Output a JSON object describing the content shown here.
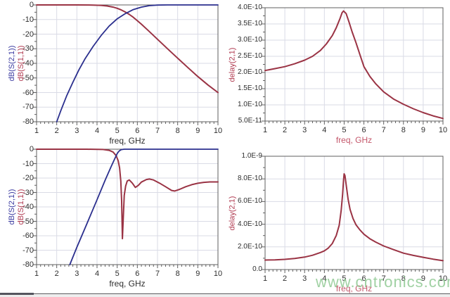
{
  "watermark": {
    "text": "www.cntronics.com",
    "color": "rgba(143,201,147,0.85)"
  },
  "colors": {
    "blue": "#2b2f8e",
    "red": "#9a3344",
    "grid": "#dadbe6",
    "frame": "#5f5f5f",
    "tick": "#5f5f5f",
    "tick_text": "#2e2e2e",
    "blue_label": "#3a3aa0",
    "red_label": "#b03a50",
    "red_axis_title": "#c4576b",
    "dark_axis_title": "#2e2e2e"
  },
  "chart_data": [
    {
      "id": "tl",
      "type": "line",
      "title": "",
      "xlabel": "freq, GHz",
      "xlabel_style": "dark",
      "ylabel_lines": [
        {
          "text": "dB(S(2,1))",
          "color_key": "blue_label"
        },
        {
          "text": "dB(S(1,1))",
          "color_key": "red_label"
        }
      ],
      "x": {
        "min": 1,
        "max": 10,
        "ticks": [
          1,
          2,
          3,
          4,
          5,
          6,
          7,
          8,
          9,
          10
        ],
        "minor_step": 0.2
      },
      "y": {
        "min": -80,
        "max": 0,
        "ticks": [
          {
            "label": "0",
            "value": 0
          },
          {
            "label": "-10",
            "value": -10
          },
          {
            "label": "-20",
            "value": -20
          },
          {
            "label": "-30",
            "value": -30
          },
          {
            "label": "-40",
            "value": -40
          },
          {
            "label": "-50",
            "value": -50
          },
          {
            "label": "-60",
            "value": -60
          },
          {
            "label": "-70",
            "value": -70
          },
          {
            "label": "-80",
            "value": -80
          }
        ],
        "sci": false
      },
      "series": [
        {
          "name": "dB(S(1,1))",
          "color_key": "red",
          "width": 2,
          "points": [
            [
              1,
              0
            ],
            [
              2,
              0
            ],
            [
              3,
              0
            ],
            [
              3.8,
              -0.1
            ],
            [
              4.2,
              -0.3
            ],
            [
              4.5,
              -0.7
            ],
            [
              4.8,
              -1.5
            ],
            [
              5.0,
              -2.3
            ],
            [
              5.2,
              -3.4
            ],
            [
              5.4,
              -4.8
            ],
            [
              5.6,
              -6.5
            ],
            [
              5.8,
              -8.5
            ],
            [
              6.0,
              -10.8
            ],
            [
              6.2,
              -13.2
            ],
            [
              6.5,
              -17
            ],
            [
              7.0,
              -23.5
            ],
            [
              7.5,
              -30
            ],
            [
              8.0,
              -36.5
            ],
            [
              8.5,
              -42.8
            ],
            [
              9.0,
              -49
            ],
            [
              9.5,
              -54.8
            ],
            [
              10,
              -60
            ]
          ]
        },
        {
          "name": "dB(S(2,1))",
          "color_key": "blue",
          "width": 1.8,
          "points": [
            [
              2,
              -80
            ],
            [
              2.2,
              -72.5
            ],
            [
              2.5,
              -62
            ],
            [
              2.8,
              -53
            ],
            [
              3.1,
              -44.5
            ],
            [
              3.4,
              -37
            ],
            [
              3.8,
              -28.5
            ],
            [
              4.2,
              -21
            ],
            [
              4.6,
              -14.5
            ],
            [
              5.0,
              -9.5
            ],
            [
              5.4,
              -6
            ],
            [
              5.8,
              -3.2
            ],
            [
              6.2,
              -1.5
            ],
            [
              6.6,
              -0.5
            ],
            [
              7.0,
              -0.1
            ],
            [
              7.5,
              0
            ],
            [
              10,
              0
            ]
          ]
        }
      ]
    },
    {
      "id": "tr",
      "type": "line",
      "title": "",
      "xlabel": "freq, GHz",
      "xlabel_style": "red",
      "ylabel_lines": [
        {
          "text": "delay(2,1)",
          "color_key": "red_label"
        }
      ],
      "x": {
        "min": 1,
        "max": 10,
        "ticks": [
          1,
          2,
          3,
          4,
          5,
          6,
          7,
          8,
          9,
          10
        ],
        "minor_step": 0.2
      },
      "y": {
        "min": 5e-11,
        "max": 4e-10,
        "ticks": [
          {
            "label": "4.0E-10",
            "value": 4e-10
          },
          {
            "label": "3.5E-10",
            "value": 3.5e-10
          },
          {
            "label": "3.0E-10",
            "value": 3e-10
          },
          {
            "label": "2.5E-10",
            "value": 2.5e-10
          },
          {
            "label": "2.0E-10",
            "value": 2e-10
          },
          {
            "label": "1.5E-10",
            "value": 1.5e-10
          },
          {
            "label": "1.0E-10",
            "value": 1e-10
          },
          {
            "label": "5.0E-11",
            "value": 5e-11
          }
        ],
        "sci": true
      },
      "series": [
        {
          "name": "delay(2,1)",
          "color_key": "red",
          "width": 2,
          "points": [
            [
              1,
              2.06e-10
            ],
            [
              1.5,
              2.12e-10
            ],
            [
              2,
              2.18e-10
            ],
            [
              2.5,
              2.27e-10
            ],
            [
              3,
              2.38e-10
            ],
            [
              3.4,
              2.5e-10
            ],
            [
              3.8,
              2.68e-10
            ],
            [
              4.1,
              2.88e-10
            ],
            [
              4.4,
              3.14e-10
            ],
            [
              4.6,
              3.38e-10
            ],
            [
              4.8,
              3.68e-10
            ],
            [
              4.9,
              3.85e-10
            ],
            [
              4.97,
              3.9e-10
            ],
            [
              5.1,
              3.82e-10
            ],
            [
              5.25,
              3.55e-10
            ],
            [
              5.4,
              3.26e-10
            ],
            [
              5.6,
              2.92e-10
            ],
            [
              5.8,
              2.55e-10
            ],
            [
              6.0,
              2.18e-10
            ],
            [
              6.3,
              1.88e-10
            ],
            [
              6.6,
              1.65e-10
            ],
            [
              7.0,
              1.4e-10
            ],
            [
              7.5,
              1.18e-10
            ],
            [
              8.0,
              1.02e-10
            ],
            [
              8.5,
              8.8e-11
            ],
            [
              9.0,
              7.6e-11
            ],
            [
              9.5,
              6.6e-11
            ],
            [
              10,
              5.8e-11
            ]
          ]
        }
      ]
    },
    {
      "id": "bl",
      "type": "line",
      "title": "",
      "xlabel": "freq, GHz",
      "xlabel_style": "dark",
      "ylabel_lines": [
        {
          "text": "dB(S(2,1))",
          "color_key": "blue_label"
        },
        {
          "text": "dB(S(1,1))",
          "color_key": "red_label"
        }
      ],
      "x": {
        "min": 1,
        "max": 10,
        "ticks": [
          1,
          2,
          3,
          4,
          5,
          6,
          7,
          8,
          9,
          10
        ],
        "minor_step": 0.2
      },
      "y": {
        "min": -80,
        "max": 0,
        "ticks": [
          {
            "label": "0",
            "value": 0
          },
          {
            "label": "-10",
            "value": -10
          },
          {
            "label": "-20",
            "value": -20
          },
          {
            "label": "-30",
            "value": -30
          },
          {
            "label": "-40",
            "value": -40
          },
          {
            "label": "-50",
            "value": -50
          },
          {
            "label": "-60",
            "value": -60
          },
          {
            "label": "-70",
            "value": -70
          },
          {
            "label": "-80",
            "value": -80
          }
        ],
        "sci": false
      },
      "series": [
        {
          "name": "dB(S(1,1))",
          "color_key": "red",
          "width": 2,
          "points": [
            [
              1,
              0
            ],
            [
              3.5,
              0
            ],
            [
              4.3,
              -0.2
            ],
            [
              4.6,
              -0.8
            ],
            [
              4.8,
              -2
            ],
            [
              4.95,
              -4.5
            ],
            [
              5.05,
              -8
            ],
            [
              5.12,
              -13
            ],
            [
              5.18,
              -22
            ],
            [
              5.22,
              -36
            ],
            [
              5.26,
              -62
            ],
            [
              5.3,
              -48
            ],
            [
              5.35,
              -32
            ],
            [
              5.42,
              -25.5
            ],
            [
              5.5,
              -22
            ],
            [
              5.6,
              -21.3
            ],
            [
              5.75,
              -23.5
            ],
            [
              5.9,
              -26.5
            ],
            [
              6.05,
              -25
            ],
            [
              6.2,
              -22.8
            ],
            [
              6.45,
              -21
            ],
            [
              6.6,
              -20.7
            ],
            [
              6.8,
              -21.3
            ],
            [
              7.1,
              -23.5
            ],
            [
              7.4,
              -26
            ],
            [
              7.7,
              -28.6
            ],
            [
              7.85,
              -29
            ],
            [
              8.1,
              -27.8
            ],
            [
              8.4,
              -26
            ],
            [
              8.7,
              -24.6
            ],
            [
              9.0,
              -23.6
            ],
            [
              9.3,
              -23
            ],
            [
              9.6,
              -22.7
            ],
            [
              10,
              -22.7
            ]
          ]
        },
        {
          "name": "dB(S(2,1))",
          "color_key": "blue",
          "width": 1.8,
          "points": [
            [
              2.65,
              -80
            ],
            [
              3.0,
              -68
            ],
            [
              3.5,
              -51.5
            ],
            [
              4.0,
              -35
            ],
            [
              4.4,
              -21.5
            ],
            [
              4.7,
              -12
            ],
            [
              4.9,
              -6
            ],
            [
              5.0,
              -3
            ],
            [
              5.1,
              -1.2
            ],
            [
              5.2,
              -0.3
            ],
            [
              5.35,
              0
            ],
            [
              10,
              0
            ]
          ]
        }
      ]
    },
    {
      "id": "br",
      "type": "line",
      "title": "",
      "xlabel": "freq, GHz",
      "xlabel_style": "red",
      "ylabel_lines": [
        {
          "text": "delay(2,1)",
          "color_key": "red_label"
        }
      ],
      "x": {
        "min": 1,
        "max": 10,
        "ticks": [
          1,
          2,
          3,
          4,
          5,
          6,
          7,
          8,
          9,
          10
        ],
        "minor_step": 0.2
      },
      "y": {
        "min": 0,
        "max": 1e-09,
        "ticks": [
          {
            "label": "1.0E-9",
            "value": 1e-09
          },
          {
            "label": "8.0E-10",
            "value": 8e-10
          },
          {
            "label": "6.0E-10",
            "value": 6e-10
          },
          {
            "label": "4.0E-10",
            "value": 4e-10
          },
          {
            "label": "2.0E-10",
            "value": 2e-10
          },
          {
            "label": "0.0",
            "value": 0
          }
        ],
        "sci": true
      },
      "series": [
        {
          "name": "delay(2,1)",
          "color_key": "red",
          "width": 2,
          "points": [
            [
              1,
              8.4e-11
            ],
            [
              1.5,
              8.6e-11
            ],
            [
              2,
              9e-11
            ],
            [
              2.5,
              9.8e-11
            ],
            [
              3,
              1.1e-10
            ],
            [
              3.4,
              1.26e-10
            ],
            [
              3.8,
              1.5e-10
            ],
            [
              4.0,
              1.65e-10
            ],
            [
              4.2,
              1.9e-10
            ],
            [
              4.4,
              2.3e-10
            ],
            [
              4.6,
              3e-10
            ],
            [
              4.75,
              3.9e-10
            ],
            [
              4.85,
              5.2e-10
            ],
            [
              4.92,
              6.6e-10
            ],
            [
              4.97,
              7.9e-10
            ],
            [
              5.0,
              8.45e-10
            ],
            [
              5.04,
              8.3e-10
            ],
            [
              5.1,
              7.5e-10
            ],
            [
              5.2,
              6.2e-10
            ],
            [
              5.3,
              5.3e-10
            ],
            [
              5.45,
              4.5e-10
            ],
            [
              5.6,
              3.95e-10
            ],
            [
              5.8,
              3.5e-10
            ],
            [
              6.0,
              3.12e-10
            ],
            [
              6.3,
              2.72e-10
            ],
            [
              6.6,
              2.42e-10
            ],
            [
              7.0,
              2.08e-10
            ],
            [
              7.5,
              1.76e-10
            ],
            [
              8.0,
              1.45e-10
            ],
            [
              8.5,
              1.25e-10
            ],
            [
              9.0,
              1.08e-10
            ],
            [
              9.5,
              9.2e-11
            ],
            [
              10,
              7.8e-11
            ]
          ]
        }
      ]
    }
  ]
}
